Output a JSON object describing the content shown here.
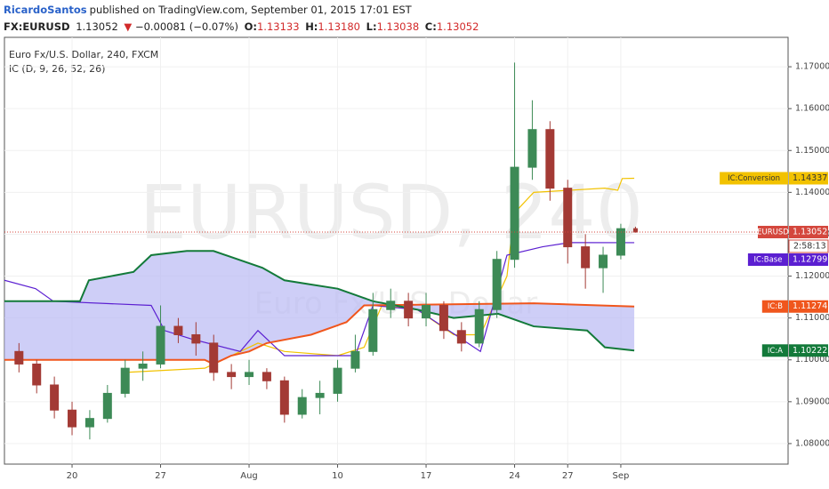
{
  "chart_data": {
    "type": "candlestick",
    "publisher": "RicardoSantos",
    "published": "published on TradingView.com, September 01, 2015 17:01 EST",
    "symbol": "FX:EURUSD",
    "change": "−0.00081 (−0.07%)",
    "ohlc_prefixes": [
      "O:",
      "H:",
      "L:",
      "C:"
    ],
    "last_bar_labels": [
      "1.13133",
      "1.13180",
      "1.13038",
      "1.13052"
    ],
    "title": "Euro Fx/U.S. Dollar, 240, FXCM",
    "subtitle": "IC (D, 9, 26, 52, 26)",
    "watermark": "EURUSD, 240",
    "watermark_sub": "Euro Fx/U.S. Dollar",
    "countdown": "2:58:13",
    "candles": {
      "name": "EURUSD",
      "color": "#d4473d",
      "up_color": "#3d8a56",
      "down_color": "#a33a35",
      "x": [
        2,
        3,
        4,
        5,
        6,
        7,
        8,
        9,
        10,
        11,
        12,
        13,
        14,
        15,
        16,
        17,
        18,
        19,
        20,
        21,
        22,
        23,
        24,
        25,
        26,
        27,
        28,
        29,
        30,
        31,
        32,
        33,
        34,
        35,
        36,
        36.83
      ],
      "open": [
        1.102,
        1.099,
        1.094,
        1.088,
        1.084,
        1.086,
        1.092,
        1.098,
        1.099,
        1.108,
        1.106,
        1.104,
        1.097,
        1.096,
        1.097,
        1.095,
        1.087,
        1.091,
        1.092,
        1.098,
        1.102,
        1.112,
        1.114,
        1.11,
        1.113,
        1.107,
        1.104,
        1.112,
        1.124,
        1.146,
        1.155,
        1.141,
        1.127,
        1.122,
        1.125,
        1.13133
      ],
      "high": [
        1.104,
        1.1,
        1.096,
        1.09,
        1.088,
        1.094,
        1.1,
        1.102,
        1.113,
        1.11,
        1.109,
        1.106,
        1.099,
        1.1,
        1.098,
        1.096,
        1.093,
        1.095,
        1.1,
        1.106,
        1.116,
        1.117,
        1.116,
        1.116,
        1.114,
        1.109,
        1.114,
        1.126,
        1.171,
        1.162,
        1.157,
        1.143,
        1.13,
        1.127,
        1.1325,
        1.1318
      ],
      "low": [
        1.097,
        1.092,
        1.086,
        1.082,
        1.081,
        1.085,
        1.091,
        1.095,
        1.098,
        1.104,
        1.101,
        1.095,
        1.093,
        1.094,
        1.093,
        1.085,
        1.086,
        1.087,
        1.09,
        1.097,
        1.101,
        1.11,
        1.108,
        1.108,
        1.105,
        1.102,
        1.103,
        1.11,
        1.122,
        1.143,
        1.138,
        1.123,
        1.117,
        1.116,
        1.124,
        1.13038
      ],
      "close": [
        1.099,
        1.094,
        1.088,
        1.084,
        1.086,
        1.092,
        1.098,
        1.099,
        1.108,
        1.106,
        1.104,
        1.097,
        1.096,
        1.097,
        1.095,
        1.087,
        1.091,
        1.092,
        1.098,
        1.102,
        1.112,
        1.114,
        1.11,
        1.113,
        1.107,
        1.104,
        1.112,
        1.124,
        1.146,
        1.155,
        1.141,
        1.127,
        1.122,
        1.125,
        1.13133,
        1.13052
      ]
    },
    "series": [
      {
        "name": "IC:Conversion",
        "color": "#f2c200",
        "x": [
          8.0,
          12.5,
          14.0,
          15.5,
          17.0,
          20.0,
          21.5,
          22.5,
          24.5,
          26.56,
          28.07,
          28.82,
          29.57,
          29.97,
          31.08,
          35.1,
          35.83,
          36.08,
          36.76
        ],
        "values": [
          1.097,
          1.098,
          1.101,
          1.104,
          1.102,
          1.101,
          1.103,
          1.113,
          1.112,
          1.106,
          1.106,
          1.113,
          1.12,
          1.135,
          1.14,
          1.141,
          1.1405,
          1.1433,
          1.14337
        ]
      },
      {
        "name": "IC:Base",
        "color": "#5b1fd1",
        "x": [
          1.18,
          2.94,
          3.94,
          9.47,
          10.23,
          11.73,
          14.5,
          15.5,
          17.0,
          20.0,
          21.0,
          22.0,
          24.5,
          28.07,
          29.57,
          31.58,
          33.09,
          36.76
        ],
        "values": [
          1.119,
          1.117,
          1.114,
          1.113,
          1.107,
          1.105,
          1.102,
          1.107,
          1.101,
          1.101,
          1.101,
          1.113,
          1.112,
          1.102,
          1.125,
          1.127,
          1.128,
          1.12799
        ]
      },
      {
        "name": "IC:B",
        "color": "#f0561d",
        "x": [
          1.18,
          12.49,
          12.99,
          13.99,
          15.0,
          16.0,
          18.5,
          20.5,
          21.5,
          31.08,
          36.76
        ],
        "values": [
          1.1,
          1.1,
          1.099,
          1.101,
          1.102,
          1.104,
          1.106,
          1.109,
          1.113,
          1.1135,
          1.11274
        ]
      },
      {
        "name": "IC:A",
        "color": "#137a3a",
        "x": [
          1.18,
          5.45,
          5.95,
          8.47,
          9.47,
          11.48,
          12.99,
          15.75,
          17.0,
          18.5,
          20.0,
          22.0,
          24.5,
          26.56,
          29.07,
          31.08,
          34.1,
          35.1,
          36.76
        ],
        "values": [
          1.114,
          1.114,
          1.119,
          1.121,
          1.125,
          1.126,
          1.126,
          1.122,
          1.119,
          1.118,
          1.117,
          1.114,
          1.112,
          1.11,
          1.111,
          1.108,
          1.107,
          1.103,
          1.10222
        ]
      }
    ],
    "cloud_color": "#b9b9f4",
    "xlim": [
      1.18,
      45.45
    ],
    "xticks": [
      {
        "value": 5,
        "label": "20"
      },
      {
        "value": 10,
        "label": "27"
      },
      {
        "value": 15,
        "label": "Aug"
      },
      {
        "value": 20,
        "label": "10"
      },
      {
        "value": 25,
        "label": "17"
      },
      {
        "value": 30,
        "label": "24"
      },
      {
        "value": 33,
        "label": "27"
      },
      {
        "value": 36,
        "label": "Sep"
      }
    ],
    "ylim": [
      1.0751,
      1.1749
    ],
    "yticks": [
      {
        "value": 1.08,
        "label": "1.08000"
      },
      {
        "value": 1.09,
        "label": "1.09000"
      },
      {
        "value": 1.1,
        "label": "1.10000"
      },
      {
        "value": 1.11,
        "label": "1.11000"
      },
      {
        "value": 1.12,
        "label": "1.12000"
      },
      {
        "value": 1.13,
        "label": "1.13000"
      },
      {
        "value": 1.14,
        "label": "1.14000"
      },
      {
        "value": 1.15,
        "label": "1.15000"
      },
      {
        "value": 1.16,
        "label": "1.16000"
      },
      {
        "value": 1.17,
        "label": "1.17000"
      }
    ],
    "grid": true
  }
}
